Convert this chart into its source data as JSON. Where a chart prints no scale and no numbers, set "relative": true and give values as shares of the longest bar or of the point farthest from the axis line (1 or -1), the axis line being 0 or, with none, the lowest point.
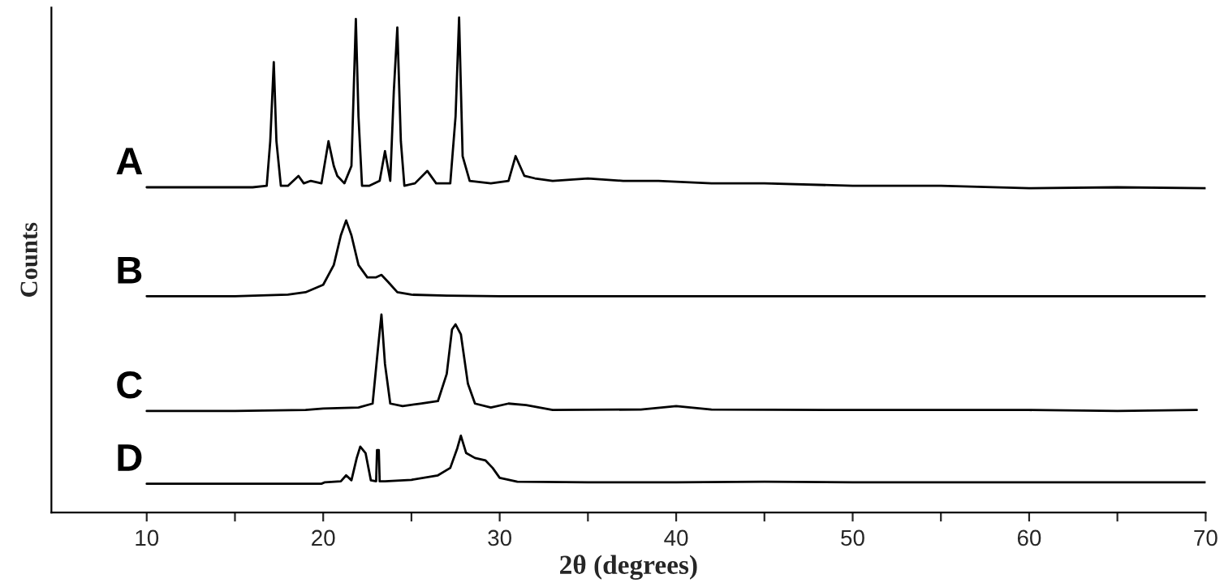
{
  "chart_data": {
    "type": "line",
    "relative": true,
    "xlabel": "2θ (degrees)",
    "ylabel": "Counts",
    "xlim": [
      4.6,
      70
    ],
    "xticks": [
      10,
      {
        "value": 15,
        "label": null
      },
      20,
      {
        "value": 25,
        "label": null
      },
      30,
      {
        "value": 35,
        "label": null
      },
      40,
      {
        "value": 45,
        "label": null
      },
      50,
      {
        "value": 55,
        "label": null
      },
      60,
      {
        "value": 65,
        "label": null
      },
      70
    ],
    "grid": false,
    "legend": false,
    "marker": "none",
    "line_style": "solid",
    "series": [
      {
        "name": "A",
        "color": "#000000",
        "x": [
          10,
          12,
          14,
          16,
          16.8,
          17.0,
          17.2,
          17.35,
          17.6,
          18.0,
          18.6,
          18.9,
          19.3,
          19.9,
          20.3,
          20.6,
          20.8,
          21.2,
          21.6,
          21.85,
          22.0,
          22.2,
          22.6,
          23.2,
          23.5,
          23.8,
          24.0,
          24.2,
          24.4,
          24.6,
          25.2,
          25.9,
          26.4,
          27.2,
          27.5,
          27.7,
          27.9,
          28.3,
          29.5,
          30.5,
          30.9,
          31.4,
          32,
          33,
          35,
          37,
          39,
          42,
          45,
          50,
          55,
          60,
          65,
          70
        ],
        "values": [
          0.657,
          0.657,
          0.657,
          0.657,
          0.66,
          0.75,
          0.91,
          0.75,
          0.66,
          0.66,
          0.68,
          0.665,
          0.67,
          0.665,
          0.75,
          0.7,
          0.68,
          0.665,
          0.7,
          0.997,
          0.8,
          0.66,
          0.66,
          0.67,
          0.73,
          0.67,
          0.85,
          0.98,
          0.75,
          0.66,
          0.665,
          0.69,
          0.665,
          0.665,
          0.8,
          1.0,
          0.72,
          0.67,
          0.665,
          0.67,
          0.72,
          0.68,
          0.675,
          0.67,
          0.675,
          0.67,
          0.67,
          0.665,
          0.665,
          0.66,
          0.66,
          0.655,
          0.657,
          0.655
        ]
      },
      {
        "name": "B",
        "color": "#000000",
        "x": [
          10,
          15,
          18,
          19,
          20,
          20.6,
          21.0,
          21.3,
          21.6,
          22.0,
          22.5,
          23.0,
          23.3,
          23.7,
          24.2,
          25,
          27,
          30,
          40,
          50,
          60,
          70
        ],
        "values": [
          0.437,
          0.437,
          0.44,
          0.445,
          0.46,
          0.5,
          0.56,
          0.59,
          0.56,
          0.5,
          0.475,
          0.475,
          0.48,
          0.465,
          0.445,
          0.44,
          0.438,
          0.437,
          0.437,
          0.437,
          0.437,
          0.437
        ]
      },
      {
        "name": "C",
        "color": "#000000",
        "x": [
          10,
          15,
          19,
          20,
          22,
          22.8,
          23.1,
          23.3,
          23.5,
          23.8,
          24.5,
          25.5,
          26.5,
          27.0,
          27.3,
          27.5,
          27.8,
          28.2,
          28.6,
          29.5,
          30.5,
          31.5,
          33,
          38,
          40,
          42,
          50,
          55,
          60,
          65,
          69.5
        ],
        "values": [
          0.205,
          0.205,
          0.207,
          0.21,
          0.212,
          0.22,
          0.33,
          0.4,
          0.3,
          0.22,
          0.215,
          0.22,
          0.225,
          0.28,
          0.37,
          0.38,
          0.36,
          0.26,
          0.22,
          0.212,
          0.22,
          0.217,
          0.207,
          0.208,
          0.215,
          0.208,
          0.207,
          0.207,
          0.207,
          0.205,
          0.207
        ]
      },
      {
        "name": "D",
        "color": "#000000",
        "x": [
          10,
          15,
          19.9,
          20.1,
          21.0,
          21.3,
          21.6,
          21.9,
          22.1,
          22.4,
          22.7,
          23.0,
          23.05,
          23.15,
          23.2,
          23.5,
          25,
          26.5,
          27.2,
          27.6,
          27.8,
          28.1,
          28.6,
          29.2,
          29.6,
          30,
          31,
          35,
          40,
          45,
          50,
          60,
          70
        ],
        "values": [
          0.058,
          0.058,
          0.058,
          0.061,
          0.063,
          0.075,
          0.065,
          0.11,
          0.133,
          0.12,
          0.065,
          0.063,
          0.126,
          0.126,
          0.063,
          0.063,
          0.066,
          0.075,
          0.09,
          0.13,
          0.155,
          0.12,
          0.11,
          0.105,
          0.09,
          0.07,
          0.062,
          0.061,
          0.061,
          0.062,
          0.061,
          0.061,
          0.061
        ]
      }
    ]
  }
}
